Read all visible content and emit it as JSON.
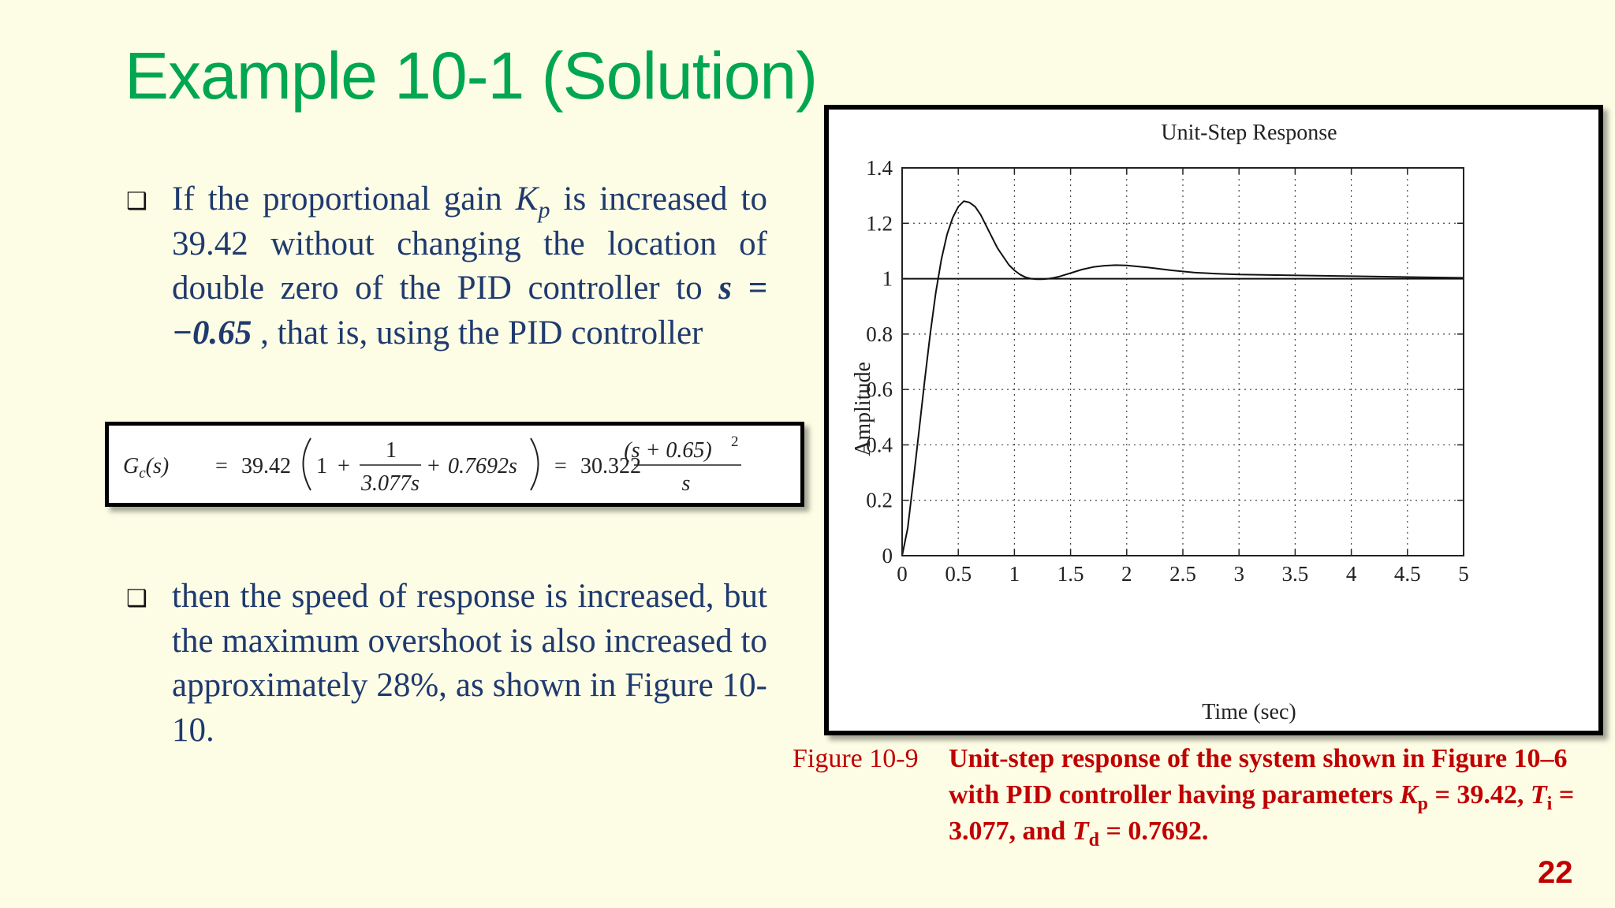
{
  "slide": {
    "title": "Example  10-1 (Solution)",
    "page_number": "22"
  },
  "bullets": [
    {
      "t1": "If the proportional gain ",
      "var": "K",
      "sub": "p",
      "t2": " is increased to 39.42 without changing the location of double zero of the PID controller to ",
      "math": "s = −0.65",
      "t3": " , that is, using the PID controller"
    },
    {
      "text": "then the speed of response is increased, but the maximum overshoot is also increased to approximately 28%, as shown in Figure 10-10."
    }
  ],
  "equation": {
    "lhs": "G",
    "lhs_sub": "c",
    "lhs_arg": "(s)",
    "eq1": "=",
    "gain": "39.42",
    "one": "1",
    "plus1": "+",
    "frac1_num": "1",
    "frac1_den": "3.077s",
    "plus2": "+",
    "deriv": "0.7692s",
    "eq2": "=",
    "gain2": "30.322",
    "frac2_num": "(s + 0.65)",
    "frac2_exp": "2",
    "frac2_den": "s"
  },
  "chart_data": {
    "type": "line",
    "title": "Unit-Step Response",
    "xlabel": "Time (sec)",
    "ylabel": "Amplitude",
    "xlim": [
      0,
      5
    ],
    "ylim": [
      0,
      1.4
    ],
    "xticks": [
      "0",
      "0.5",
      "1",
      "1.5",
      "2",
      "2.5",
      "3",
      "3.5",
      "4",
      "4.5",
      "5"
    ],
    "yticks": [
      "0",
      "0.2",
      "0.4",
      "0.6",
      "0.8",
      "1",
      "1.2",
      "1.4"
    ],
    "grid": true,
    "series": [
      {
        "x": [
          0,
          0.05,
          0.1,
          0.15,
          0.2,
          0.25,
          0.3,
          0.35,
          0.4,
          0.45,
          0.5,
          0.55,
          0.6,
          0.65,
          0.7,
          0.75,
          0.8,
          0.85,
          0.9,
          0.95,
          1.0,
          1.05,
          1.1,
          1.15,
          1.2,
          1.25,
          1.3,
          1.35,
          1.4,
          1.5,
          1.6,
          1.7,
          1.8,
          1.9,
          2.0,
          2.2,
          2.4,
          2.6,
          2.8,
          3.0,
          3.5,
          4.0,
          4.5,
          5.0
        ],
        "y": [
          0,
          0.1,
          0.27,
          0.45,
          0.63,
          0.8,
          0.95,
          1.07,
          1.16,
          1.22,
          1.26,
          1.28,
          1.275,
          1.26,
          1.23,
          1.19,
          1.15,
          1.11,
          1.08,
          1.05,
          1.03,
          1.015,
          1.005,
          1.0,
          0.998,
          0.998,
          1.0,
          1.003,
          1.008,
          1.02,
          1.033,
          1.042,
          1.047,
          1.049,
          1.048,
          1.04,
          1.03,
          1.022,
          1.018,
          1.015,
          1.012,
          1.009,
          1.006,
          1.003
        ]
      },
      {
        "x": [
          0,
          5
        ],
        "y": [
          1,
          1
        ]
      }
    ]
  },
  "figure_caption": {
    "label": "Figure 10-9",
    "t1": "Unit-step response of the system shown in Figure 10–6 with PID controller having parameters  ",
    "kp_var": "K",
    "kp_sub": "p",
    "t2": " = 39.42, ",
    "ti_var": "T",
    "ti_sub": "i",
    "t3": " = 3.077, and ",
    "td_var": "T",
    "td_sub": "d",
    "t4": " = 0.7692."
  },
  "icons": {
    "bullet": "hollow-square-bullet-icon"
  }
}
